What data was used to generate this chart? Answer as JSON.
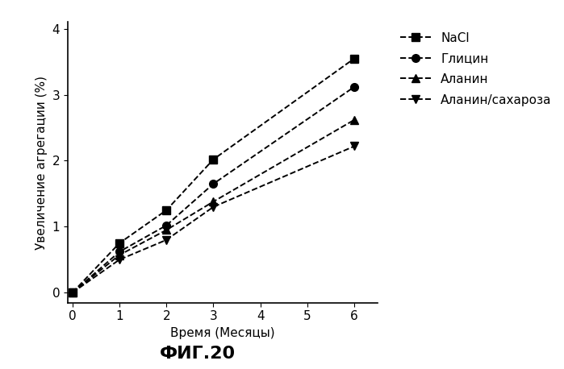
{
  "title": "ФИГ.20",
  "xlabel": "Время (Месяцы)",
  "ylabel": "Увеличение агрегации (%)",
  "xlim": [
    -0.1,
    6.5
  ],
  "ylim": [
    -0.15,
    4.1
  ],
  "xticks": [
    0,
    1,
    2,
    3,
    4,
    5,
    6
  ],
  "yticks": [
    0,
    1,
    2,
    3,
    4
  ],
  "series": [
    {
      "label": "NaCl",
      "x": [
        0,
        1,
        2,
        3,
        6
      ],
      "y": [
        0,
        0.75,
        1.25,
        2.02,
        3.55
      ],
      "marker": "s",
      "color": "#000000"
    },
    {
      "label": "Глицин",
      "x": [
        0,
        1,
        2,
        3,
        6
      ],
      "y": [
        0,
        0.62,
        1.02,
        1.65,
        3.12
      ],
      "marker": "o",
      "color": "#000000"
    },
    {
      "label": "Аланин",
      "x": [
        0,
        1,
        2,
        3,
        6
      ],
      "y": [
        0,
        0.57,
        0.95,
        1.38,
        2.62
      ],
      "marker": "^",
      "color": "#000000"
    },
    {
      "label": "Аланин/сахароза",
      "x": [
        0,
        1,
        2,
        3,
        6
      ],
      "y": [
        0,
        0.5,
        0.8,
        1.3,
        2.22
      ],
      "marker": "v",
      "color": "#000000"
    }
  ],
  "line_style": "--",
  "linewidth": 1.4,
  "markersize": 7,
  "background_color": "#ffffff",
  "legend_fontsize": 11,
  "axis_fontsize": 11,
  "title_fontsize": 16,
  "tick_fontsize": 11
}
